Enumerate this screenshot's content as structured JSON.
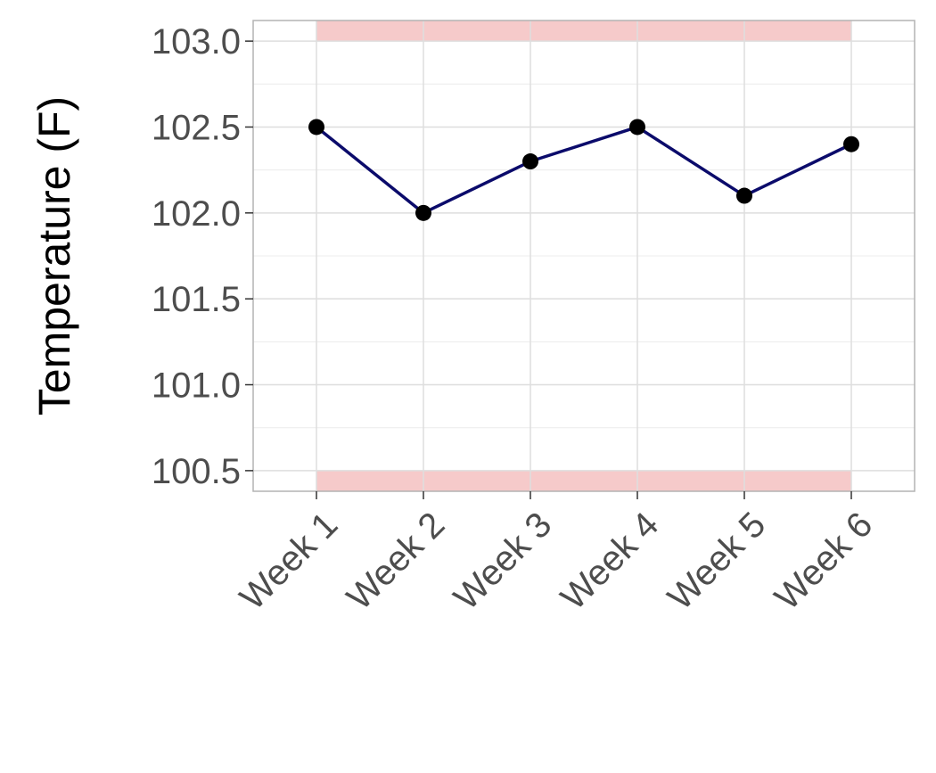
{
  "chart_data": {
    "type": "line",
    "title": "",
    "xlabel": "",
    "ylabel": "Temperature (F)",
    "categories": [
      "Week 1",
      "Week 2",
      "Week 3",
      "Week 4",
      "Week 5",
      "Week 6"
    ],
    "series": [
      {
        "values": [
          102.5,
          102.0,
          102.3,
          102.5,
          102.1,
          102.4
        ],
        "color": "#0b0b6b",
        "marker_color": "#000000"
      }
    ],
    "ylim": [
      100.38,
      103.12
    ],
    "yticks": [
      "100.5",
      "101.0",
      "101.5",
      "102.0",
      "102.5",
      "103.0"
    ],
    "bands": [
      {
        "y0": 100.38,
        "y1": 100.5,
        "color": "#f6caca"
      },
      {
        "y0": 103.0,
        "y1": 103.12,
        "color": "#f6caca"
      }
    ],
    "grid": true,
    "legend": "none",
    "colors": {
      "panel_border": "#b3b3b3",
      "grid_major": "#dedede",
      "grid_minor": "#ececec",
      "tick_text": "#4d4d4d"
    }
  }
}
